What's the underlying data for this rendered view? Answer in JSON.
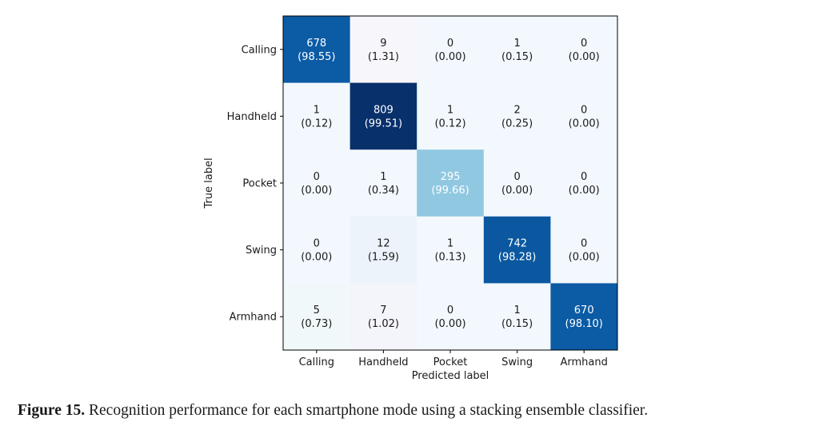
{
  "caption": {
    "label": "Figure 15.",
    "text": "Recognition performance for each smartphone mode using a stacking ensemble classifier."
  },
  "chart_data": {
    "type": "heatmap",
    "title": "",
    "xlabel": "Predicted label",
    "ylabel": "True label",
    "x_categories": [
      "Calling",
      "Handheld",
      "Pocket",
      "Swing",
      "Armhand"
    ],
    "y_categories": [
      "Calling",
      "Handheld",
      "Pocket",
      "Swing",
      "Armhand"
    ],
    "counts": [
      [
        678,
        9,
        0,
        1,
        0
      ],
      [
        1,
        809,
        1,
        2,
        0
      ],
      [
        0,
        1,
        295,
        0,
        0
      ],
      [
        0,
        12,
        1,
        742,
        0
      ],
      [
        5,
        7,
        0,
        1,
        670
      ]
    ],
    "percentages": [
      [
        "98.55",
        "1.31",
        "0.00",
        "0.15",
        "0.00"
      ],
      [
        "0.12",
        "99.51",
        "0.12",
        "0.25",
        "0.00"
      ],
      [
        "0.00",
        "0.34",
        "99.66",
        "0.00",
        "0.00"
      ],
      [
        "0.00",
        "1.59",
        "0.13",
        "98.28",
        "0.00"
      ],
      [
        "0.73",
        "1.02",
        "0.00",
        "0.15",
        "98.10"
      ]
    ],
    "colormap": "Blues",
    "cell_colors": [
      [
        "#0b5ba5",
        "#f7f6fb",
        "#f2f8fd",
        "#f2f8fd",
        "#f2f8fd"
      ],
      [
        "#f2f8fd",
        "#08306b",
        "#f2f8fd",
        "#f2f8fd",
        "#f2f8fd"
      ],
      [
        "#f2f8fd",
        "#f2f8fd",
        "#90c8e1",
        "#f2f8fd",
        "#f2f8fd"
      ],
      [
        "#f2f8fd",
        "#ecf3fa",
        "#f2f8fd",
        "#0b58a0",
        "#f2f8fd"
      ],
      [
        "#f1f8fa",
        "#f4f4fb",
        "#f2f8fd",
        "#f2f8fd",
        "#0b5ba5"
      ]
    ],
    "text_light": "#ffffff",
    "text_dark": "#1a1a1a",
    "grid": false
  }
}
